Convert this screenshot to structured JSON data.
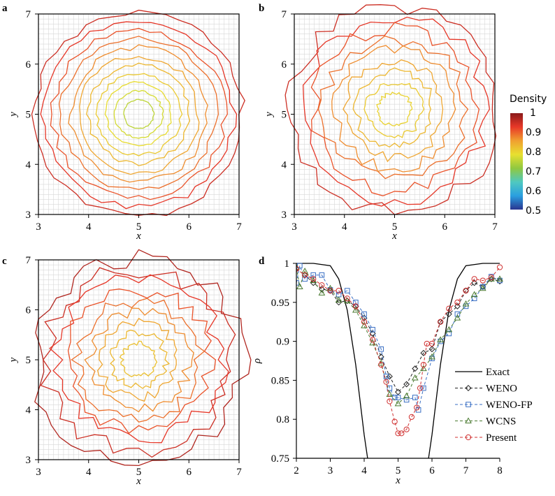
{
  "panel_labels": {
    "a": "a",
    "b": "b",
    "c": "c",
    "d": "d"
  },
  "colorbar": {
    "title": "Density",
    "ticks": [
      "1",
      "0.9",
      "0.8",
      "0.7",
      "0.6",
      "0.5"
    ],
    "range": [
      0.5,
      1
    ],
    "colors": [
      "#2a3590",
      "#2a9fe0",
      "#4fc8c0",
      "#90c840",
      "#e8e030",
      "#f0a030",
      "#e83828",
      "#8a1a1a"
    ]
  },
  "chart_data": [
    {
      "type": "contour",
      "panel": "a",
      "xlabel": "x",
      "ylabel": "y",
      "xlim": [
        3,
        7
      ],
      "ylim": [
        3,
        7
      ],
      "xticks": [
        "3",
        "4",
        "5",
        "6",
        "7"
      ],
      "yticks": [
        "3",
        "4",
        "5",
        "6",
        "7"
      ],
      "grid": true,
      "center": [
        5,
        5
      ],
      "levels": [
        0.95,
        0.93,
        0.91,
        0.89,
        0.87,
        0.85,
        0.83,
        0.81,
        0.79,
        0.77,
        0.75
      ]
    },
    {
      "type": "contour",
      "panel": "b",
      "xlabel": "x",
      "ylabel": "y",
      "xlim": [
        3,
        7
      ],
      "ylim": [
        3,
        7
      ],
      "xticks": [
        "3",
        "4",
        "5",
        "6",
        "7"
      ],
      "yticks": [
        "3",
        "4",
        "5",
        "6",
        "7"
      ],
      "grid": true,
      "center": [
        5,
        5.1
      ],
      "levels": [
        0.95,
        0.93,
        0.91,
        0.89,
        0.87,
        0.85,
        0.83,
        0.81,
        0.8
      ]
    },
    {
      "type": "contour",
      "panel": "c",
      "xlabel": "x",
      "ylabel": "y",
      "xlim": [
        3,
        7
      ],
      "ylim": [
        3,
        7
      ],
      "xticks": [
        "3",
        "4",
        "5",
        "6",
        "7"
      ],
      "yticks": [
        "3",
        "4",
        "5",
        "6",
        "7"
      ],
      "grid": true,
      "center": [
        5,
        5
      ],
      "levels": [
        0.97,
        0.95,
        0.93,
        0.91,
        0.89,
        0.87,
        0.85,
        0.83,
        0.82
      ]
    },
    {
      "type": "line",
      "panel": "d",
      "xlabel": "x",
      "ylabel": "ρ",
      "xlim": [
        2,
        8
      ],
      "ylim": [
        0.75,
        1
      ],
      "xticks": [
        "2",
        "3",
        "4",
        "5",
        "6",
        "7",
        "8"
      ],
      "yticks": [
        "0.75",
        "0.8",
        "0.85",
        "0.9",
        "0.95",
        "1"
      ],
      "legend": "right",
      "series": [
        {
          "name": "Exact",
          "color": "#000000",
          "marker": "none",
          "dash": false,
          "x": [
            2,
            2.5,
            3,
            3.25,
            3.5,
            3.75,
            4,
            4.1,
            4.2,
            5.8,
            5.9,
            6,
            6.25,
            6.5,
            6.75,
            7,
            7.5,
            8
          ],
          "y": [
            1,
            1,
            0.997,
            0.98,
            0.94,
            0.87,
            0.78,
            0.75,
            0.72,
            0.72,
            0.75,
            0.78,
            0.87,
            0.94,
            0.98,
            0.997,
            1,
            1
          ]
        },
        {
          "name": "WENO",
          "color": "#222222",
          "marker": "diamond",
          "dash": true,
          "x": [
            2,
            2.25,
            2.5,
            2.75,
            3,
            3.25,
            3.5,
            3.75,
            4,
            4.25,
            4.5,
            4.75,
            5,
            5.25,
            5.5,
            5.75,
            6,
            6.25,
            6.5,
            6.75,
            7,
            7.25,
            7.5,
            7.75,
            8
          ],
          "y": [
            0.993,
            0.985,
            0.975,
            0.967,
            0.965,
            0.95,
            0.952,
            0.945,
            0.93,
            0.91,
            0.88,
            0.855,
            0.835,
            0.845,
            0.865,
            0.885,
            0.89,
            0.925,
            0.935,
            0.945,
            0.965,
            0.975,
            0.97,
            0.98,
            0.977
          ]
        },
        {
          "name": "WENO-FP",
          "color": "#3a6fc4",
          "marker": "square",
          "dash": true,
          "x": [
            2,
            2.1,
            2.25,
            2.5,
            2.75,
            3,
            3.25,
            3.5,
            3.75,
            4,
            4.25,
            4.5,
            4.65,
            4.75,
            4.9,
            5,
            5.25,
            5.5,
            5.6,
            5.75,
            6,
            6.25,
            6.5,
            6.75,
            7,
            7.25,
            7.5,
            7.75,
            8
          ],
          "y": [
            0.975,
            0.997,
            0.98,
            0.985,
            0.985,
            0.966,
            0.96,
            0.965,
            0.95,
            0.935,
            0.915,
            0.89,
            0.855,
            0.84,
            0.828,
            0.828,
            0.825,
            0.828,
            0.812,
            0.84,
            0.878,
            0.9,
            0.91,
            0.935,
            0.945,
            0.955,
            0.97,
            0.983,
            0.978
          ]
        },
        {
          "name": "WCNS",
          "color": "#4a7a30",
          "marker": "triangle",
          "dash": true,
          "x": [
            2,
            2.1,
            2.25,
            2.5,
            2.75,
            3,
            3.25,
            3.5,
            3.75,
            4,
            4.25,
            4.5,
            4.75,
            5,
            5.25,
            5.5,
            5.75,
            6,
            6.25,
            6.5,
            6.75,
            7,
            7.25,
            7.5,
            7.75,
            8
          ],
          "y": [
            0.995,
            0.97,
            0.99,
            0.978,
            0.962,
            0.968,
            0.953,
            0.952,
            0.94,
            0.92,
            0.898,
            0.872,
            0.832,
            0.82,
            0.83,
            0.853,
            0.865,
            0.88,
            0.902,
            0.915,
            0.93,
            0.948,
            0.96,
            0.968,
            0.98,
            0.98
          ]
        },
        {
          "name": "Present",
          "color": "#d03030",
          "marker": "circle",
          "dash": true,
          "x": [
            2,
            2.25,
            2.5,
            2.75,
            3,
            3.25,
            3.5,
            3.75,
            4,
            4.25,
            4.5,
            4.65,
            4.75,
            4.9,
            5,
            5.1,
            5.25,
            5.4,
            5.55,
            5.65,
            5.75,
            5.85,
            6,
            6.25,
            6.5,
            6.75,
            7,
            7.25,
            7.5,
            7.75,
            8
          ],
          "y": [
            0.993,
            0.985,
            0.98,
            0.972,
            0.965,
            0.965,
            0.955,
            0.945,
            0.925,
            0.902,
            0.87,
            0.848,
            0.823,
            0.797,
            0.782,
            0.782,
            0.787,
            0.803,
            0.815,
            0.84,
            0.87,
            0.897,
            0.897,
            0.925,
            0.942,
            0.95,
            0.965,
            0.98,
            0.978,
            0.982,
            0.995
          ]
        }
      ]
    }
  ]
}
